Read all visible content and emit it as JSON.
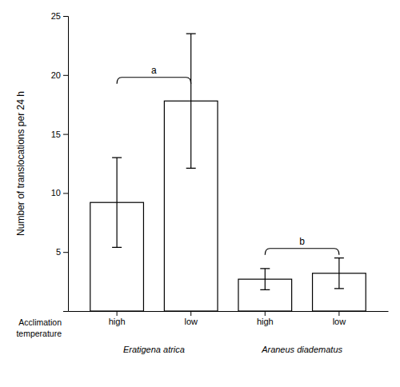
{
  "chart_data": {
    "type": "bar",
    "ylabel": "Number of translocations per 24 h",
    "categories": [
      "high",
      "low",
      "high",
      "low"
    ],
    "species": [
      "Eratigena atrica",
      "Eratigena atrica",
      "Araneus diadematus",
      "Araneus diadematus"
    ],
    "values": [
      9.2,
      17.8,
      2.7,
      3.2
    ],
    "errors": [
      3.8,
      5.7,
      0.9,
      1.3
    ],
    "color": "#ffffff",
    "ylim": [
      0,
      25
    ],
    "yticks": [
      5,
      10,
      15,
      20,
      25
    ],
    "axis_note": [
      "Acclimation",
      "temperature"
    ],
    "annotations": [
      {
        "text": "a",
        "from": 0,
        "to": 1,
        "y": 19.8
      },
      {
        "text": "b",
        "from": 2,
        "to": 3,
        "y": 5.3
      }
    ]
  }
}
